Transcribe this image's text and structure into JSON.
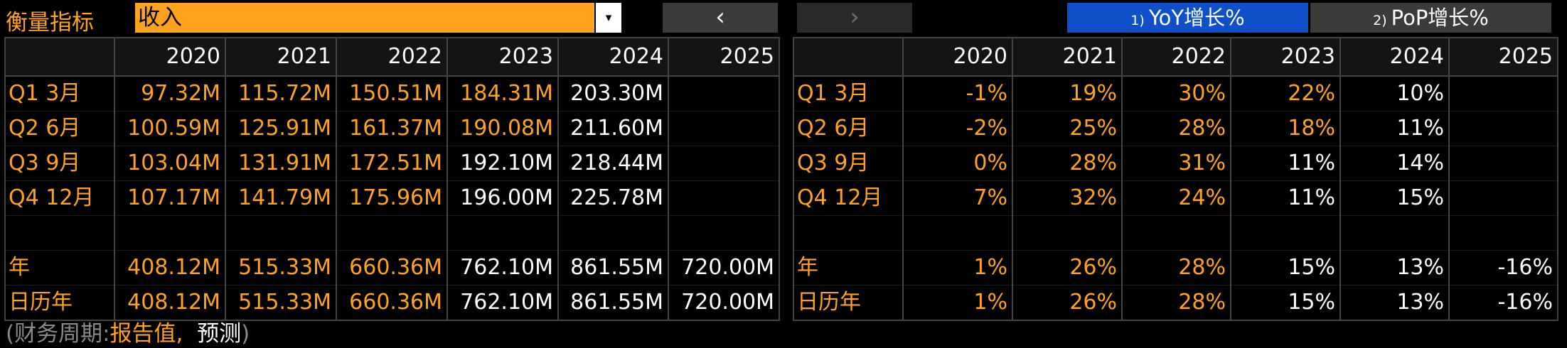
{
  "header": {
    "metric_label": "衡量指标",
    "metric_value": "收入",
    "dropdown_arrow": "▾",
    "prev_label": "‹",
    "next_label": "›",
    "tab_yoy_num": "1)",
    "tab_yoy_label": "YoY增长%",
    "tab_pop_num": "2)",
    "tab_pop_label": "PoP增长%"
  },
  "years": [
    "2020",
    "2021",
    "2022",
    "2023",
    "2024",
    "2025"
  ],
  "left_table": {
    "rows": [
      {
        "label": "Q1 3月",
        "cells": [
          {
            "v": "97.32M",
            "t": "rep"
          },
          {
            "v": "115.72M",
            "t": "rep"
          },
          {
            "v": "150.51M",
            "t": "rep"
          },
          {
            "v": "184.31M",
            "t": "rep"
          },
          {
            "v": "203.30M",
            "t": "est"
          },
          {
            "v": "",
            "t": "est"
          }
        ]
      },
      {
        "label": "Q2 6月",
        "cells": [
          {
            "v": "100.59M",
            "t": "rep"
          },
          {
            "v": "125.91M",
            "t": "rep"
          },
          {
            "v": "161.37M",
            "t": "rep"
          },
          {
            "v": "190.08M",
            "t": "rep"
          },
          {
            "v": "211.60M",
            "t": "est"
          },
          {
            "v": "",
            "t": "est"
          }
        ]
      },
      {
        "label": "Q3 9月",
        "cells": [
          {
            "v": "103.04M",
            "t": "rep"
          },
          {
            "v": "131.91M",
            "t": "rep"
          },
          {
            "v": "172.51M",
            "t": "rep"
          },
          {
            "v": "192.10M",
            "t": "est"
          },
          {
            "v": "218.44M",
            "t": "est"
          },
          {
            "v": "",
            "t": "est"
          }
        ]
      },
      {
        "label": "Q4 12月",
        "cells": [
          {
            "v": "107.17M",
            "t": "rep"
          },
          {
            "v": "141.79M",
            "t": "rep"
          },
          {
            "v": "175.96M",
            "t": "rep"
          },
          {
            "v": "196.00M",
            "t": "est"
          },
          {
            "v": "225.78M",
            "t": "est"
          },
          {
            "v": "",
            "t": "est"
          }
        ]
      },
      {
        "label": "",
        "spacer": true,
        "cells": []
      },
      {
        "label": "年",
        "cells": [
          {
            "v": "408.12M",
            "t": "rep"
          },
          {
            "v": "515.33M",
            "t": "rep"
          },
          {
            "v": "660.36M",
            "t": "rep"
          },
          {
            "v": "762.10M",
            "t": "est"
          },
          {
            "v": "861.55M",
            "t": "est"
          },
          {
            "v": "720.00M",
            "t": "est"
          }
        ]
      },
      {
        "label": "日历年",
        "cells": [
          {
            "v": "408.12M",
            "t": "rep"
          },
          {
            "v": "515.33M",
            "t": "rep"
          },
          {
            "v": "660.36M",
            "t": "rep"
          },
          {
            "v": "762.10M",
            "t": "est"
          },
          {
            "v": "861.55M",
            "t": "est"
          },
          {
            "v": "720.00M",
            "t": "est"
          }
        ]
      }
    ]
  },
  "right_table": {
    "rows": [
      {
        "label": "Q1 3月",
        "cells": [
          {
            "v": "-1%",
            "t": "rep"
          },
          {
            "v": "19%",
            "t": "rep"
          },
          {
            "v": "30%",
            "t": "rep"
          },
          {
            "v": "22%",
            "t": "rep"
          },
          {
            "v": "10%",
            "t": "est"
          },
          {
            "v": "",
            "t": "est"
          }
        ]
      },
      {
        "label": "Q2 6月",
        "cells": [
          {
            "v": "-2%",
            "t": "rep"
          },
          {
            "v": "25%",
            "t": "rep"
          },
          {
            "v": "28%",
            "t": "rep"
          },
          {
            "v": "18%",
            "t": "rep"
          },
          {
            "v": "11%",
            "t": "est"
          },
          {
            "v": "",
            "t": "est"
          }
        ]
      },
      {
        "label": "Q3 9月",
        "cells": [
          {
            "v": "0%",
            "t": "rep"
          },
          {
            "v": "28%",
            "t": "rep"
          },
          {
            "v": "31%",
            "t": "rep"
          },
          {
            "v": "11%",
            "t": "est"
          },
          {
            "v": "14%",
            "t": "est"
          },
          {
            "v": "",
            "t": "est"
          }
        ]
      },
      {
        "label": "Q4 12月",
        "cells": [
          {
            "v": "7%",
            "t": "rep"
          },
          {
            "v": "32%",
            "t": "rep"
          },
          {
            "v": "24%",
            "t": "rep"
          },
          {
            "v": "11%",
            "t": "est"
          },
          {
            "v": "15%",
            "t": "est"
          },
          {
            "v": "",
            "t": "est"
          }
        ]
      },
      {
        "label": "",
        "spacer": true,
        "cells": []
      },
      {
        "label": "年",
        "cells": [
          {
            "v": "1%",
            "t": "rep"
          },
          {
            "v": "26%",
            "t": "rep"
          },
          {
            "v": "28%",
            "t": "rep"
          },
          {
            "v": "15%",
            "t": "est"
          },
          {
            "v": "13%",
            "t": "est"
          },
          {
            "v": "-16%",
            "t": "est"
          }
        ]
      },
      {
        "label": "日历年",
        "cells": [
          {
            "v": "1%",
            "t": "rep"
          },
          {
            "v": "26%",
            "t": "rep"
          },
          {
            "v": "28%",
            "t": "rep"
          },
          {
            "v": "15%",
            "t": "est"
          },
          {
            "v": "13%",
            "t": "est"
          },
          {
            "v": "-16%",
            "t": "est"
          }
        ]
      }
    ]
  },
  "footer": {
    "open": "(财务周期:",
    "reported": "报告值,",
    "estimate": "预测",
    "close": ")"
  },
  "colors": {
    "reported": "#ffa31f",
    "estimate": "#ffffff",
    "tab_active": "#0f4fc9"
  }
}
